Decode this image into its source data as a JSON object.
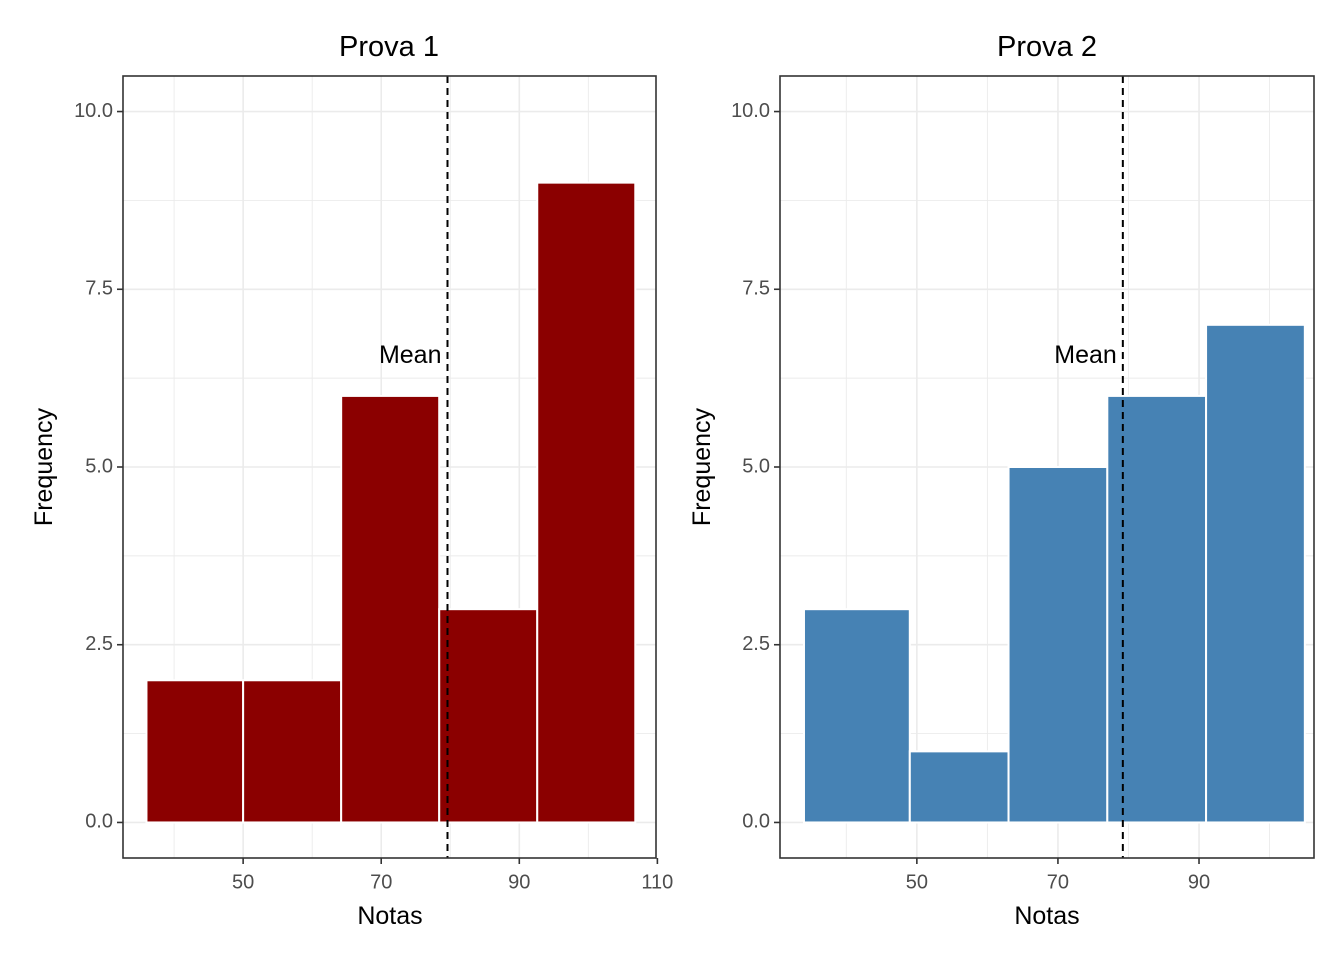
{
  "chart_data": [
    {
      "type": "bar",
      "title": "Prova 1",
      "xlabel": "Notas",
      "ylabel": "Frequency",
      "xlim": [
        32.6,
        109.8
      ],
      "ylim": [
        -0.5,
        10.5
      ],
      "xticks": [
        50,
        70,
        90,
        110
      ],
      "yticks": [
        0.0,
        2.5,
        5.0,
        7.5,
        10.0
      ],
      "ytick_labels": [
        "0.0",
        "2.5",
        "5.0",
        "7.5",
        "10.0"
      ],
      "bins": [
        {
          "x0": 36.0,
          "x1": 50.0,
          "count": 2
        },
        {
          "x0": 50.0,
          "x1": 64.2,
          "count": 2
        },
        {
          "x0": 64.2,
          "x1": 78.4,
          "count": 6
        },
        {
          "x0": 78.4,
          "x1": 92.6,
          "count": 3
        },
        {
          "x0": 92.6,
          "x1": 106.8,
          "count": 9
        }
      ],
      "mean": 79.6,
      "mean_label": "Mean",
      "mean_label_y": 6.5,
      "fill": "#8b0000",
      "grid": true
    },
    {
      "type": "bar",
      "title": "Prova 2",
      "xlabel": "Notas",
      "ylabel": "Frequency",
      "xlim": [
        30.6,
        106.3
      ],
      "ylim": [
        -0.5,
        10.5
      ],
      "xticks": [
        50,
        70,
        90
      ],
      "yticks": [
        0.0,
        2.5,
        5.0,
        7.5,
        10.0
      ],
      "ytick_labels": [
        "0.0",
        "2.5",
        "5.0",
        "7.5",
        "10.0"
      ],
      "bins": [
        {
          "x0": 34.0,
          "x1": 49.0,
          "count": 3
        },
        {
          "x0": 49.0,
          "x1": 63.0,
          "count": 1
        },
        {
          "x0": 63.0,
          "x1": 77.0,
          "count": 5
        },
        {
          "x0": 77.0,
          "x1": 91.0,
          "count": 6
        },
        {
          "x0": 91.0,
          "x1": 105.0,
          "count": 7
        }
      ],
      "mean": 79.2,
      "mean_label": "Mean",
      "mean_label_y": 6.5,
      "fill": "#4682b4",
      "grid": true
    }
  ]
}
